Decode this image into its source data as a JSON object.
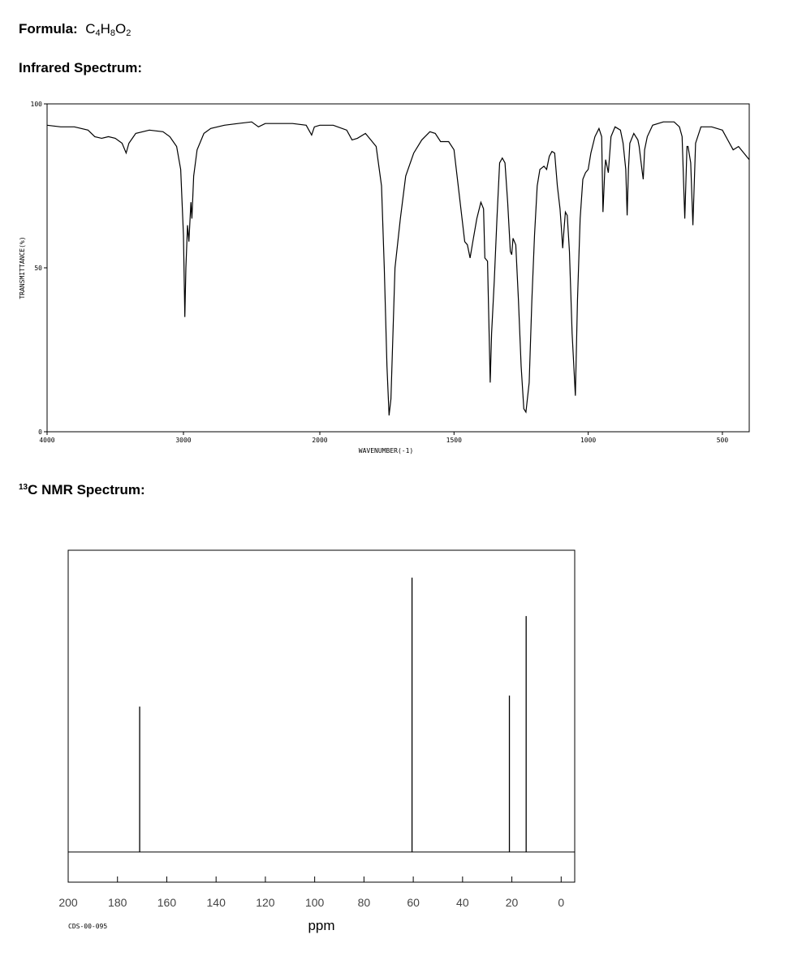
{
  "formula": {
    "label": "Formula:",
    "parts": [
      "C",
      "4",
      "H",
      "8",
      "O",
      "2"
    ]
  },
  "ir_heading": "Infrared Spectrum:",
  "nmr_heading": {
    "superscript": "13",
    "text": "C NMR Spectrum:"
  },
  "chart_data": [
    {
      "type": "line",
      "xlabel": "WAVENUMBER(-1)",
      "ylabel": "TRANSMITTANCE(%)",
      "xlim": [
        4000,
        400
      ],
      "x_scale_break": 2000,
      "xticks": [
        4000,
        3000,
        2000,
        1500,
        1000,
        500
      ],
      "ylim": [
        0,
        100
      ],
      "yticks": [
        0,
        50,
        100
      ],
      "color": "#000000",
      "x": [
        4000,
        3900,
        3800,
        3700,
        3650,
        3600,
        3550,
        3500,
        3450,
        3420,
        3400,
        3350,
        3250,
        3150,
        3100,
        3050,
        3020,
        3000,
        2990,
        2982,
        2970,
        2960,
        2945,
        2938,
        2925,
        2900,
        2850,
        2800,
        2700,
        2600,
        2500,
        2450,
        2400,
        2300,
        2200,
        2100,
        2060,
        2040,
        2000,
        1950,
        1900,
        1880,
        1860,
        1830,
        1810,
        1790,
        1770,
        1760,
        1750,
        1742,
        1735,
        1720,
        1700,
        1680,
        1650,
        1620,
        1590,
        1570,
        1550,
        1520,
        1500,
        1480,
        1470,
        1460,
        1450,
        1440,
        1430,
        1415,
        1400,
        1390,
        1385,
        1375,
        1365,
        1360,
        1350,
        1340,
        1330,
        1320,
        1310,
        1300,
        1290,
        1285,
        1280,
        1270,
        1260,
        1250,
        1240,
        1232,
        1220,
        1210,
        1200,
        1190,
        1180,
        1165,
        1155,
        1145,
        1135,
        1125,
        1115,
        1105,
        1100,
        1095,
        1090,
        1085,
        1078,
        1070,
        1060,
        1048,
        1040,
        1030,
        1020,
        1010,
        1000,
        990,
        975,
        960,
        950,
        945,
        938,
        935,
        925,
        915,
        900,
        880,
        870,
        860,
        855,
        850,
        845,
        830,
        815,
        810,
        800,
        795,
        790,
        780,
        760,
        720,
        680,
        660,
        650,
        640,
        632,
        628,
        618,
        610,
        600,
        580,
        540,
        500,
        480,
        460,
        440,
        420,
        400
      ],
      "values": [
        93.5,
        93,
        93,
        92,
        90,
        89.5,
        90,
        89.5,
        88,
        85,
        88,
        91,
        92,
        91.5,
        90,
        87,
        80,
        60,
        35,
        50,
        63,
        58,
        70,
        65,
        78,
        86,
        91,
        92.5,
        93.5,
        94,
        94.5,
        93,
        94,
        94,
        94,
        93.5,
        90.5,
        93,
        93.5,
        93.5,
        92,
        89,
        89.5,
        91,
        89,
        87,
        75,
        50,
        20,
        5,
        10,
        50,
        65,
        78,
        85,
        89,
        91.5,
        91,
        88.5,
        88.5,
        86,
        72,
        65,
        58,
        57,
        53,
        58,
        65,
        70,
        68,
        53,
        52,
        15,
        30,
        46,
        65,
        82,
        83.5,
        82,
        70,
        55,
        54,
        59,
        57,
        40,
        20,
        7,
        6,
        15,
        40,
        60,
        75,
        80,
        81,
        80,
        84,
        85.5,
        85,
        75,
        68,
        62,
        56,
        62,
        67,
        66,
        55,
        30,
        11,
        40,
        65,
        77,
        79,
        80,
        85,
        90,
        92.5,
        90,
        67,
        80,
        83,
        79,
        90,
        93,
        92,
        88,
        80,
        66,
        80,
        88,
        91,
        89,
        87,
        80,
        77,
        86,
        90,
        93.5,
        94.5,
        94.5,
        93,
        90,
        65,
        87,
        87,
        82,
        63,
        88,
        93,
        93,
        92,
        89,
        86,
        87,
        85,
        83
      ]
    },
    {
      "type": "stick",
      "xlabel": "ppm",
      "annotation": "CDS-00-095",
      "xlim": [
        200,
        -5.5
      ],
      "xticks": [
        200,
        180,
        160,
        140,
        120,
        100,
        80,
        60,
        40,
        20,
        0
      ],
      "ylim": [
        -11,
        110
      ],
      "color": "#000000",
      "x": [
        171,
        60.5,
        21,
        14.2
      ],
      "values": [
        53,
        100,
        57,
        86
      ]
    }
  ]
}
